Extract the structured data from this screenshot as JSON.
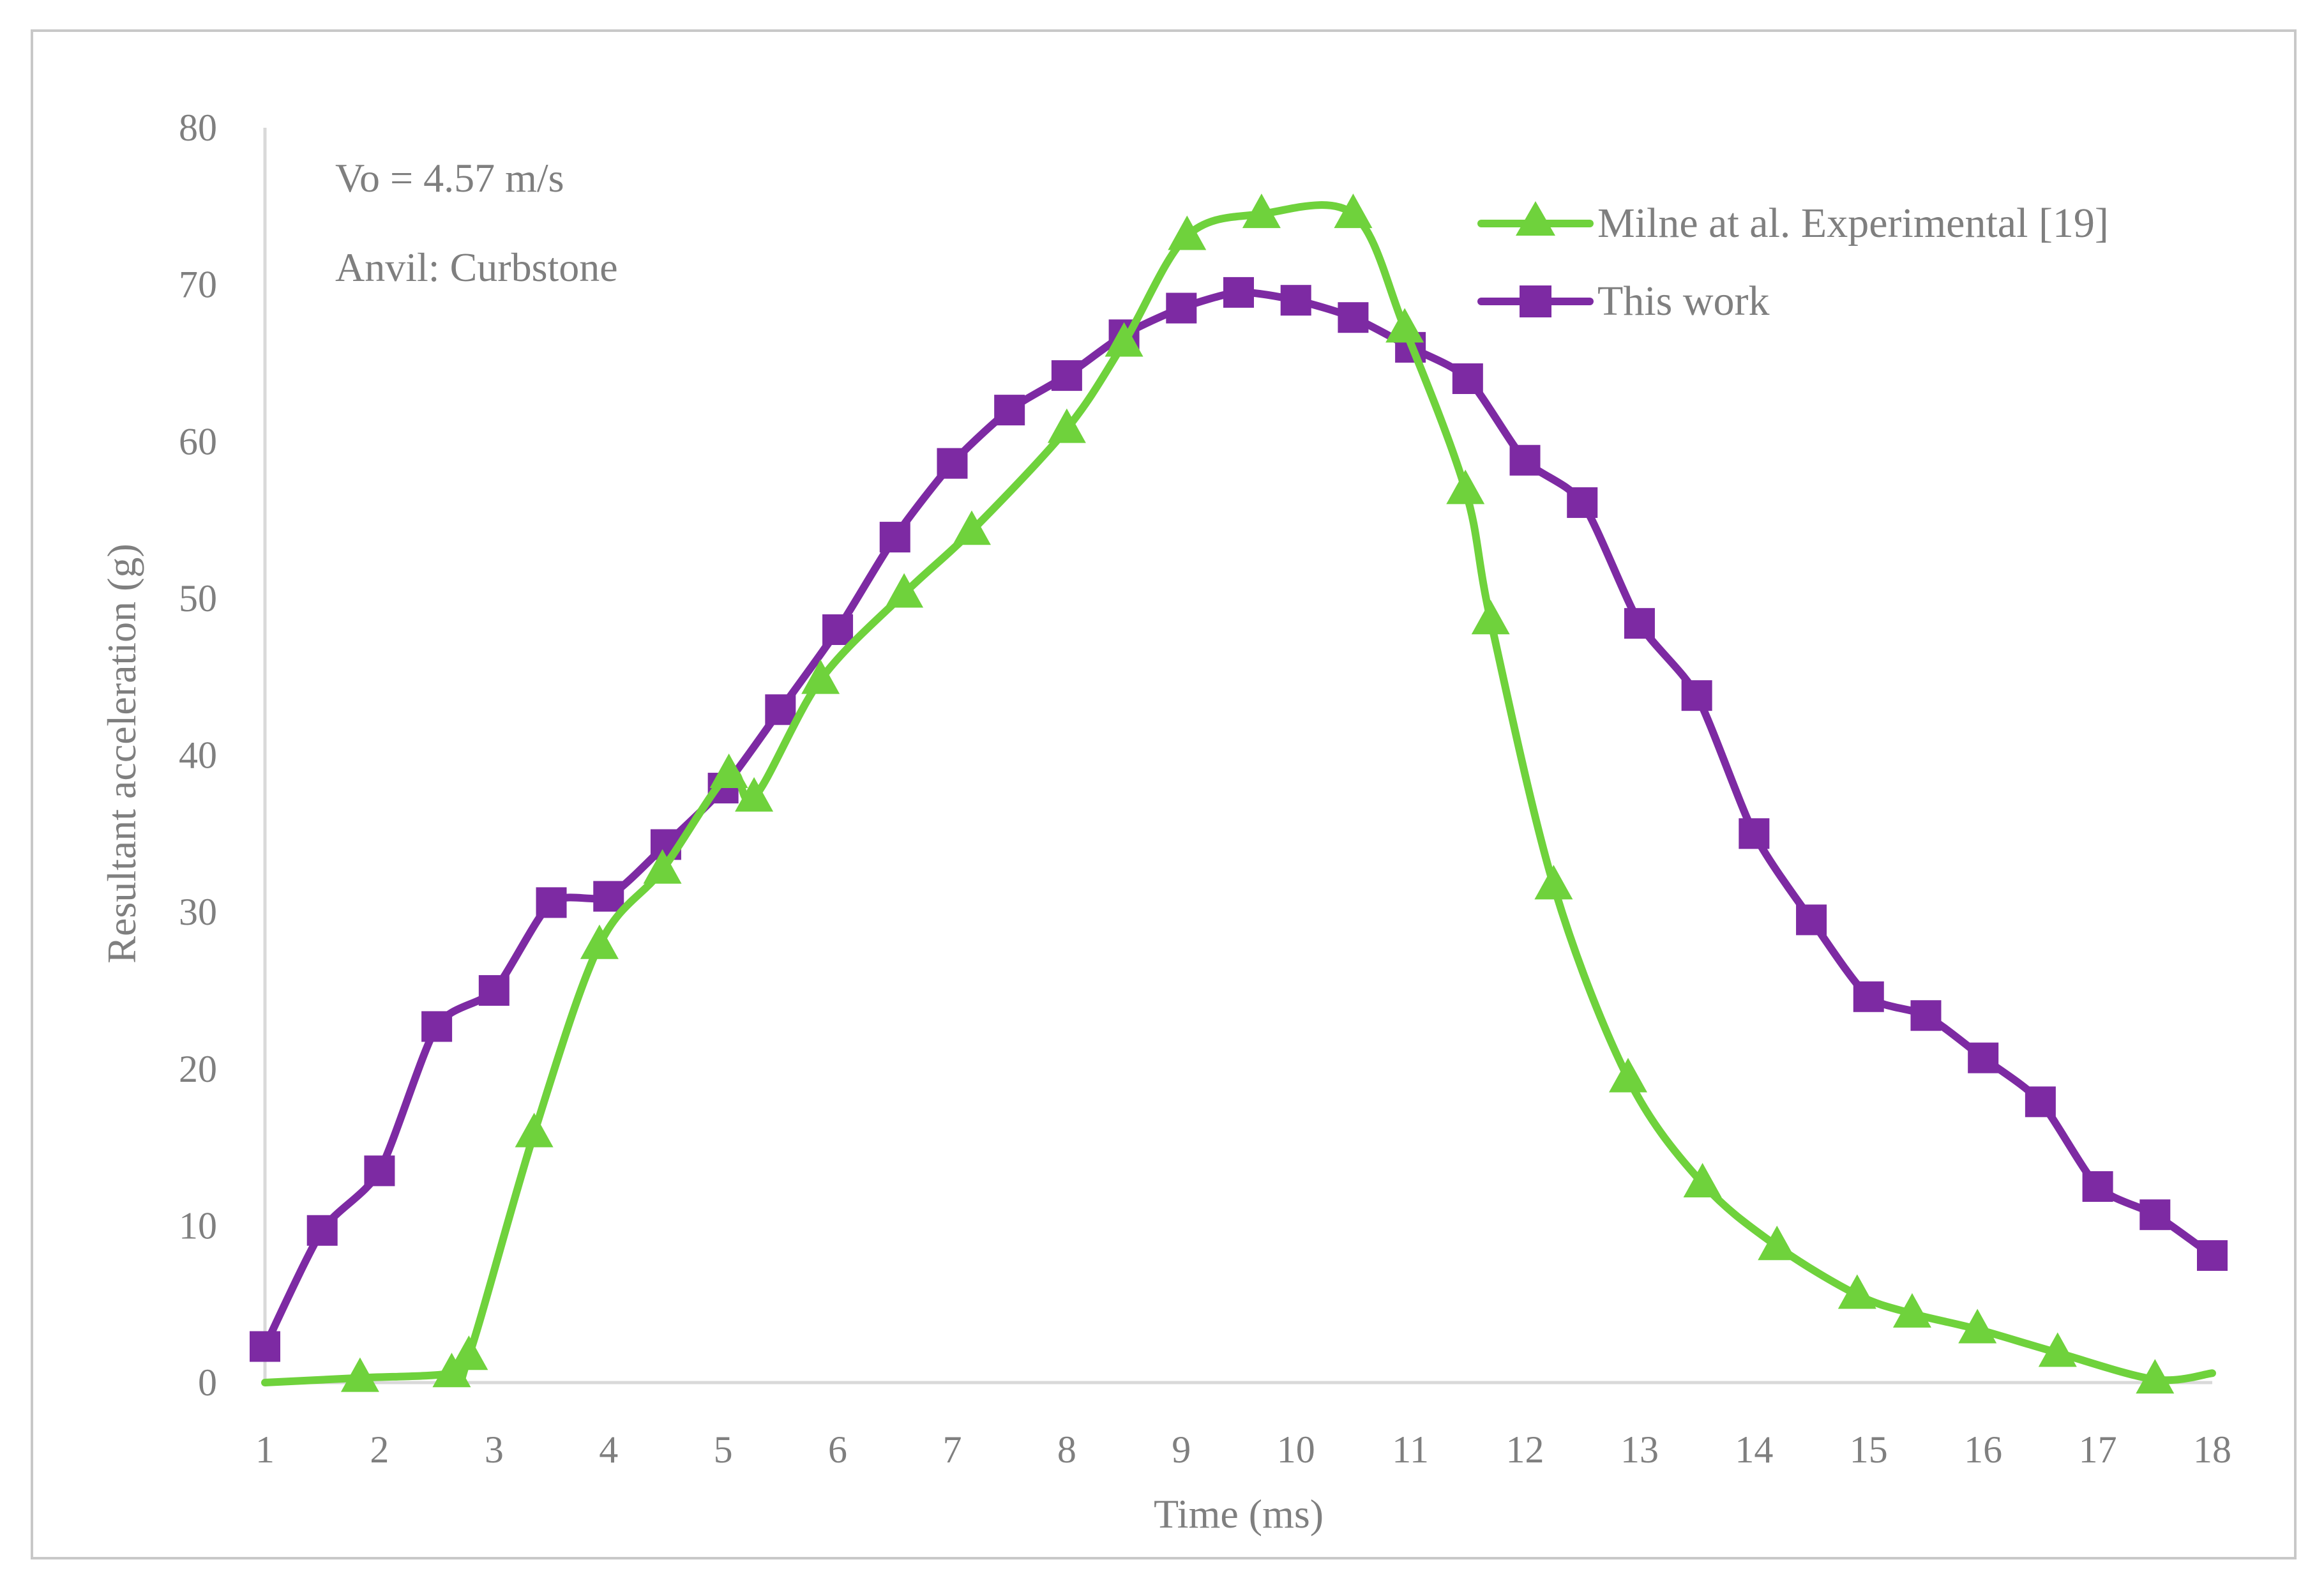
{
  "chart_data": {
    "type": "line",
    "title": "",
    "xlabel": "Time (ms)",
    "ylabel": "Resultant acceleration (g)",
    "xlim": [
      1,
      18
    ],
    "ylim": [
      0,
      80
    ],
    "xticks": [
      "1",
      "2",
      "3",
      "4",
      "5",
      "6",
      "7",
      "8",
      "9",
      "10",
      "11",
      "12",
      "13",
      "14",
      "15",
      "16",
      "17",
      "18"
    ],
    "yticks": [
      "0",
      "10",
      "20",
      "30",
      "40",
      "50",
      "60",
      "70",
      "80"
    ],
    "grid": false,
    "legend_position": "top-right",
    "annotations": [
      "Vo = 4.57 m/s",
      "Anvil: Curbstone"
    ],
    "series": [
      {
        "name": "Milne at al. Experimental  [19]",
        "marker": "triangle",
        "color": "#6fd23c",
        "line_start": [
          1.0,
          0.0
        ],
        "line_end": [
          18.0,
          0.6
        ],
        "points": [
          [
            1.83,
            0.3
          ],
          [
            2.63,
            0.6
          ],
          [
            2.78,
            1.7
          ],
          [
            3.35,
            15.9
          ],
          [
            3.92,
            27.9
          ],
          [
            4.47,
            32.7
          ],
          [
            5.05,
            38.8
          ],
          [
            5.27,
            37.3
          ],
          [
            5.85,
            44.8
          ],
          [
            6.58,
            50.3
          ],
          [
            7.17,
            54.3
          ],
          [
            8.0,
            60.8
          ],
          [
            8.5,
            66.3
          ],
          [
            9.05,
            73.1
          ],
          [
            9.7,
            74.5
          ],
          [
            10.5,
            74.5
          ],
          [
            10.95,
            67.2
          ],
          [
            11.48,
            56.9
          ],
          [
            11.7,
            48.6
          ],
          [
            12.25,
            31.7
          ],
          [
            12.9,
            19.4
          ],
          [
            13.55,
            12.7
          ],
          [
            14.2,
            8.7
          ],
          [
            14.9,
            5.6
          ],
          [
            15.38,
            4.4
          ],
          [
            15.95,
            3.4
          ],
          [
            16.65,
            1.9
          ],
          [
            17.5,
            0.2
          ]
        ]
      },
      {
        "name": "This work",
        "marker": "square",
        "color": "#7d2aa3",
        "points": [
          [
            1.0,
            2.3
          ],
          [
            1.5,
            9.7
          ],
          [
            2.0,
            13.5
          ],
          [
            2.5,
            22.7
          ],
          [
            3.0,
            25.0
          ],
          [
            3.5,
            30.6
          ],
          [
            4.0,
            31.0
          ],
          [
            4.5,
            34.3
          ],
          [
            5.0,
            37.9
          ],
          [
            5.5,
            42.9
          ],
          [
            6.0,
            48.0
          ],
          [
            6.5,
            53.9
          ],
          [
            7.0,
            58.6
          ],
          [
            7.5,
            62.0
          ],
          [
            8.0,
            64.2
          ],
          [
            8.5,
            66.8
          ],
          [
            9.0,
            68.5
          ],
          [
            9.5,
            69.5
          ],
          [
            10.0,
            69.0
          ],
          [
            10.5,
            67.9
          ],
          [
            11.0,
            66.0
          ],
          [
            11.5,
            64.0
          ],
          [
            12.0,
            58.8
          ],
          [
            12.5,
            56.1
          ],
          [
            13.0,
            48.4
          ],
          [
            13.5,
            43.8
          ],
          [
            14.0,
            35.0
          ],
          [
            14.5,
            29.5
          ],
          [
            15.0,
            24.6
          ],
          [
            15.5,
            23.4
          ],
          [
            16.0,
            20.7
          ],
          [
            16.5,
            17.9
          ],
          [
            17.0,
            12.5
          ],
          [
            17.5,
            10.7
          ],
          [
            18.0,
            8.1
          ]
        ]
      }
    ]
  }
}
